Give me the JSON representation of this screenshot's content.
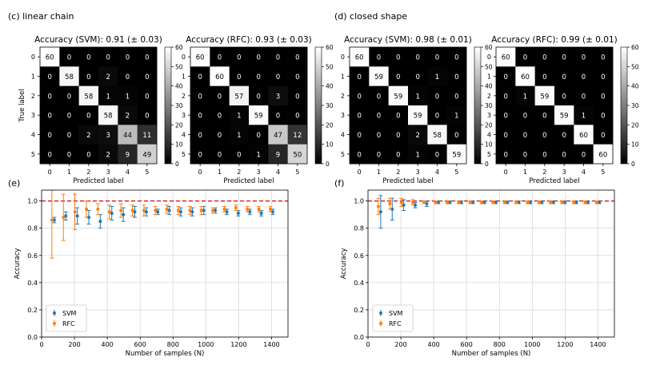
{
  "panel_labels": {
    "c": "(c) linear chain",
    "d": "(d) closed shape",
    "e": "(e)",
    "f": "(f)"
  },
  "chart_data": [
    {
      "type": "heatmap",
      "panel": "c",
      "title": "Accuracy (SVM): 0.91 (± 0.03)",
      "xlabel": "Predicted label",
      "ylabel": "True label",
      "labels": [
        "0",
        "1",
        "2",
        "3",
        "4",
        "5"
      ],
      "matrix": [
        [
          60,
          0,
          0,
          0,
          0,
          0
        ],
        [
          0,
          58,
          0,
          2,
          0,
          0
        ],
        [
          0,
          0,
          58,
          1,
          1,
          0
        ],
        [
          0,
          0,
          0,
          58,
          2,
          0
        ],
        [
          0,
          0,
          2,
          3,
          44,
          11
        ],
        [
          0,
          0,
          0,
          2,
          9,
          49
        ]
      ],
      "colorbar_ticks": [
        "0",
        "10",
        "20",
        "30",
        "40",
        "50",
        "60"
      ],
      "vmin": 0,
      "vmax": 60,
      "show_ylabel": true
    },
    {
      "type": "heatmap",
      "panel": "c",
      "title": "Accuracy (RFC): 0.93 (± 0.03)",
      "xlabel": "Predicted label",
      "ylabel": "",
      "labels": [
        "0",
        "1",
        "2",
        "3",
        "4",
        "5"
      ],
      "matrix": [
        [
          60,
          0,
          0,
          0,
          0,
          0
        ],
        [
          0,
          60,
          0,
          0,
          0,
          0
        ],
        [
          0,
          0,
          57,
          0,
          3,
          0
        ],
        [
          0,
          0,
          1,
          59,
          0,
          0
        ],
        [
          0,
          0,
          1,
          0,
          47,
          12
        ],
        [
          0,
          0,
          0,
          1,
          9,
          50
        ]
      ],
      "colorbar_ticks": [
        "0",
        "10",
        "20",
        "30",
        "40",
        "50",
        "60"
      ],
      "vmin": 0,
      "vmax": 60,
      "show_ylabel": false
    },
    {
      "type": "heatmap",
      "panel": "d",
      "title": "Accuracy (SVM): 0.98 (± 0.01)",
      "xlabel": "Predicted label",
      "ylabel": "",
      "labels": [
        "0",
        "1",
        "2",
        "3",
        "4",
        "5"
      ],
      "matrix": [
        [
          60,
          0,
          0,
          0,
          0,
          0
        ],
        [
          0,
          59,
          0,
          0,
          1,
          0
        ],
        [
          0,
          0,
          59,
          1,
          0,
          0
        ],
        [
          0,
          0,
          0,
          59,
          0,
          1
        ],
        [
          0,
          0,
          0,
          2,
          58,
          0
        ],
        [
          0,
          0,
          0,
          1,
          0,
          59
        ]
      ],
      "colorbar_ticks": [
        "0",
        "10",
        "20",
        "30",
        "40",
        "50",
        "60"
      ],
      "vmin": 0,
      "vmax": 60,
      "show_ylabel": false
    },
    {
      "type": "heatmap",
      "panel": "d",
      "title": "Accuracy (RFC): 0.99 (± 0.01)",
      "xlabel": "Predicted label",
      "ylabel": "",
      "labels": [
        "0",
        "1",
        "2",
        "3",
        "4",
        "5"
      ],
      "matrix": [
        [
          60,
          0,
          0,
          0,
          0,
          0
        ],
        [
          0,
          60,
          0,
          0,
          0,
          0
        ],
        [
          0,
          1,
          59,
          0,
          0,
          0
        ],
        [
          0,
          0,
          0,
          59,
          1,
          0
        ],
        [
          0,
          0,
          0,
          0,
          60,
          0
        ],
        [
          0,
          0,
          0,
          0,
          0,
          60
        ]
      ],
      "colorbar_ticks": [
        "0",
        "10",
        "20",
        "30",
        "40",
        "50",
        "60"
      ],
      "vmin": 0,
      "vmax": 60,
      "show_ylabel": false
    },
    {
      "type": "scatter",
      "panel": "e",
      "xlabel": "Number of samples (N)",
      "ylabel": "Accuracy",
      "xlim": [
        0,
        1500
      ],
      "ylim": [
        0,
        1.08
      ],
      "xticks": [
        "0",
        "200",
        "400",
        "600",
        "800",
        "1000",
        "1200",
        "1400"
      ],
      "yticks": [
        "0.0",
        "0.2",
        "0.4",
        "0.6",
        "0.8",
        "1.0"
      ],
      "reference_line": 1.0,
      "legend": [
        "SVM",
        "RFC"
      ],
      "legend_loc": "lower-left",
      "series": [
        {
          "name": "SVM",
          "color": "#1f77b4",
          "x": [
            70,
            140,
            210,
            280,
            350,
            420,
            490,
            560,
            630,
            700,
            770,
            840,
            910,
            980,
            1050,
            1120,
            1190,
            1260,
            1330,
            1400
          ],
          "y": [
            0.86,
            0.89,
            0.89,
            0.88,
            0.85,
            0.91,
            0.9,
            0.92,
            0.92,
            0.92,
            0.93,
            0.92,
            0.92,
            0.93,
            0.93,
            0.92,
            0.91,
            0.92,
            0.91,
            0.92
          ],
          "err": [
            0.02,
            0.03,
            0.06,
            0.05,
            0.05,
            0.05,
            0.05,
            0.04,
            0.03,
            0.02,
            0.03,
            0.03,
            0.03,
            0.03,
            0.02,
            0.02,
            0.02,
            0.02,
            0.02,
            0.02
          ]
        },
        {
          "name": "RFC",
          "color": "#ff7f0e",
          "x": [
            70,
            140,
            210,
            280,
            350,
            420,
            490,
            560,
            630,
            700,
            770,
            840,
            910,
            980,
            1050,
            1120,
            1190,
            1260,
            1330,
            1400
          ],
          "y": [
            0.86,
            0.88,
            0.92,
            0.94,
            0.94,
            0.92,
            0.93,
            0.93,
            0.93,
            0.93,
            0.94,
            0.93,
            0.93,
            0.93,
            0.93,
            0.94,
            0.95,
            0.94,
            0.94,
            0.94
          ],
          "err": [
            0.28,
            0.17,
            0.13,
            0.06,
            0.04,
            0.05,
            0.05,
            0.04,
            0.04,
            0.03,
            0.03,
            0.03,
            0.03,
            0.03,
            0.02,
            0.02,
            0.02,
            0.02,
            0.02,
            0.02
          ]
        }
      ]
    },
    {
      "type": "scatter",
      "panel": "f",
      "xlabel": "Number of samples (N)",
      "ylabel": "Accuracy",
      "xlim": [
        0,
        1500
      ],
      "ylim": [
        0,
        1.08
      ],
      "xticks": [
        "0",
        "200",
        "400",
        "600",
        "800",
        "1000",
        "1200",
        "1400"
      ],
      "yticks": [
        "0.0",
        "0.2",
        "0.4",
        "0.6",
        "0.8",
        "1.0"
      ],
      "reference_line": 1.0,
      "legend": [
        "SVM",
        "RFC"
      ],
      "legend_loc": "lower-left",
      "series": [
        {
          "name": "SVM",
          "color": "#1f77b4",
          "x": [
            70,
            140,
            210,
            280,
            350,
            420,
            490,
            560,
            630,
            700,
            770,
            840,
            910,
            980,
            1050,
            1120,
            1190,
            1260,
            1330,
            1400
          ],
          "y": [
            0.92,
            0.94,
            0.97,
            0.97,
            0.98,
            0.99,
            0.99,
            0.99,
            0.99,
            0.99,
            0.99,
            0.99,
            0.99,
            0.99,
            0.99,
            0.99,
            0.99,
            0.99,
            0.99,
            0.99
          ],
          "err": [
            0.12,
            0.08,
            0.04,
            0.02,
            0.02,
            0.01,
            0.01,
            0.01,
            0.01,
            0.01,
            0.01,
            0.01,
            0.01,
            0.01,
            0.01,
            0.01,
            0.01,
            0.01,
            0.01,
            0.01
          ]
        },
        {
          "name": "RFC",
          "color": "#ff7f0e",
          "x": [
            70,
            140,
            210,
            280,
            350,
            420,
            490,
            560,
            630,
            700,
            770,
            840,
            910,
            980,
            1050,
            1120,
            1190,
            1260,
            1330,
            1400
          ],
          "y": [
            0.96,
            0.98,
            0.99,
            0.99,
            0.99,
            0.99,
            0.99,
            0.99,
            0.99,
            0.99,
            0.99,
            0.99,
            0.99,
            0.99,
            0.99,
            0.99,
            0.99,
            0.99,
            0.99,
            0.99
          ],
          "err": [
            0.06,
            0.04,
            0.03,
            0.02,
            0.01,
            0.01,
            0.01,
            0.01,
            0.01,
            0.01,
            0.01,
            0.01,
            0.01,
            0.01,
            0.01,
            0.01,
            0.01,
            0.01,
            0.01,
            0.01
          ]
        }
      ]
    }
  ]
}
